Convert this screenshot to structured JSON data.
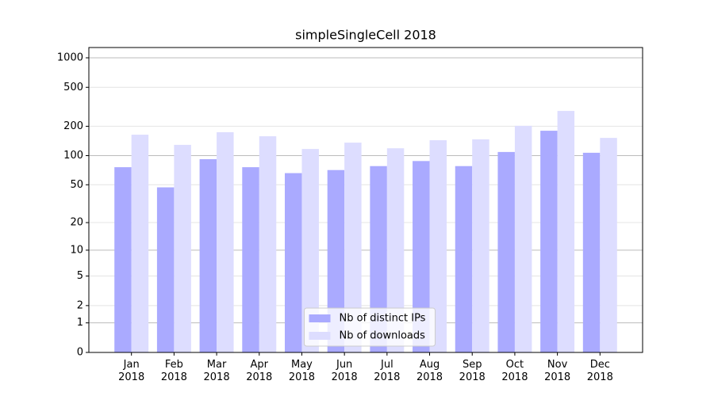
{
  "chart_data": {
    "type": "bar",
    "title": "simpleSingleCell 2018",
    "categories": [
      "Jan\n2018",
      "Feb\n2018",
      "Mar\n2018",
      "Apr\n2018",
      "May\n2018",
      "Jun\n2018",
      "Jul\n2018",
      "Aug\n2018",
      "Sep\n2018",
      "Oct\n2018",
      "Nov\n2018",
      "Dec\n2018"
    ],
    "series": [
      {
        "name": "Nb of distinct IPs",
        "color": "#aaaaff",
        "values": [
          76,
          47,
          92,
          76,
          66,
          71,
          78,
          88,
          78,
          109,
          180,
          107
        ]
      },
      {
        "name": "Nb of downloads",
        "color": "#ddddff",
        "values": [
          164,
          129,
          174,
          158,
          117,
          136,
          119,
          144,
          147,
          202,
          287,
          152
        ]
      }
    ],
    "scale": "symlog",
    "ylim": [
      0,
      1273
    ],
    "yticks": [
      0,
      1,
      2,
      5,
      10,
      20,
      50,
      100,
      200,
      500,
      1000
    ],
    "grid": true,
    "legend": "lower center"
  }
}
